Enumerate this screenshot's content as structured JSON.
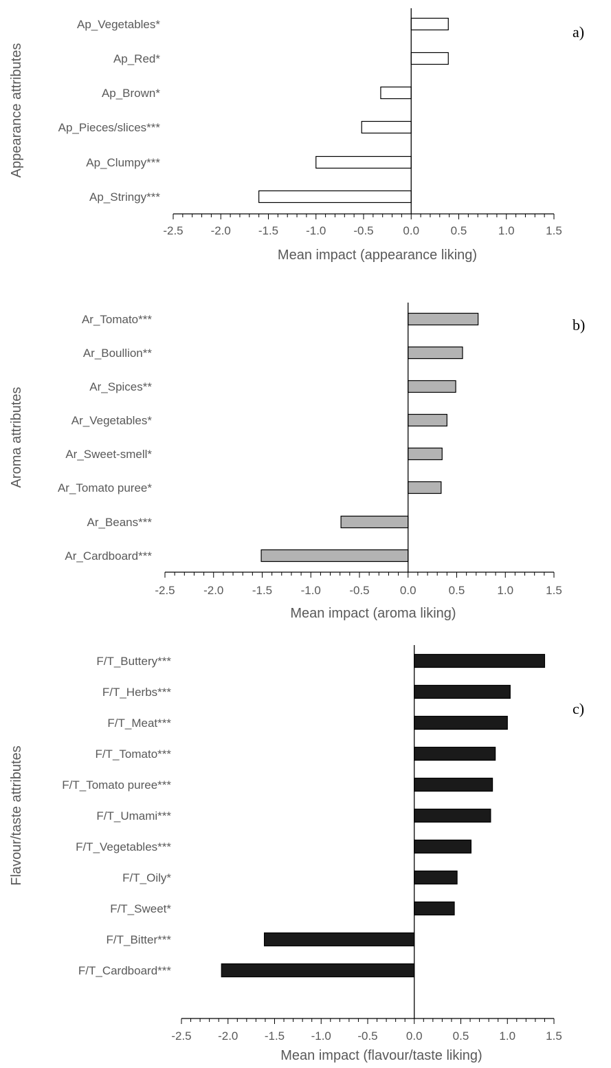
{
  "chart_data": [
    {
      "type": "bar",
      "orientation": "horizontal",
      "panel_label": "a)",
      "ylabel": "Appearance attributes",
      "xlabel": "Mean impact (appearance liking)",
      "xlim": [
        -2.5,
        1.5
      ],
      "ticks": [
        "-2.5",
        "-2.0",
        "-1.5",
        "-1.0",
        "-0.5",
        "0.0",
        "0.5",
        "1.0",
        "1.5"
      ],
      "categories": [
        "Ap_Vegetables*",
        "Ap_Red*",
        "Ap_Brown*",
        "Ap_Pieces/slices***",
        "Ap_Clumpy***",
        "Ap_Stringy***"
      ],
      "values": [
        0.39,
        0.39,
        -0.32,
        -0.52,
        -1.0,
        -1.6
      ],
      "bar_fill": "#ffffff",
      "bar_stroke": "#000000"
    },
    {
      "type": "bar",
      "orientation": "horizontal",
      "panel_label": "b)",
      "ylabel": "Aroma attributes",
      "xlabel": "Mean impact (aroma liking)",
      "xlim": [
        -2.5,
        1.5
      ],
      "ticks": [
        "-2.5",
        "-2.0",
        "-1.5",
        "-1.0",
        "-0.5",
        "0.0",
        "0.5",
        "1.0",
        "1.5"
      ],
      "categories": [
        "Ar_Tomato***",
        "Ar_Boullion**",
        "Ar_Spices**",
        "Ar_Vegetables*",
        "Ar_Sweet-smell*",
        "Ar_Tomato puree*",
        "Ar_Beans***",
        "Ar_Cardboard***"
      ],
      "values": [
        0.72,
        0.56,
        0.49,
        0.4,
        0.35,
        0.34,
        -0.69,
        -1.51
      ],
      "bar_fill": "#b3b3b3",
      "bar_stroke": "#000000"
    },
    {
      "type": "bar",
      "orientation": "horizontal",
      "panel_label": "c)",
      "ylabel": "Flavour/taste attributes",
      "xlabel": "Mean impact (flavour/taste liking)",
      "xlim": [
        -2.5,
        1.5
      ],
      "ticks": [
        "-2.5",
        "-2.0",
        "-1.5",
        "-1.0",
        "-0.5",
        "0.0",
        "0.5",
        "1.0",
        "1.5"
      ],
      "categories": [
        "F/T_Buttery***",
        "F/T_Herbs***",
        "F/T_Meat***",
        "F/T_Tomato***",
        "F/T_Tomato puree***",
        "F/T_Umami***",
        "F/T_Vegetables***",
        "F/T_Oily*",
        "F/T_Sweet*",
        "F/T_Bitter***",
        "F/T_Cardboard***"
      ],
      "values": [
        1.4,
        1.03,
        1.0,
        0.87,
        0.84,
        0.82,
        0.61,
        0.46,
        0.43,
        -1.61,
        -2.07
      ],
      "bar_fill": "#1a1a1a",
      "bar_stroke": "#000000"
    }
  ]
}
